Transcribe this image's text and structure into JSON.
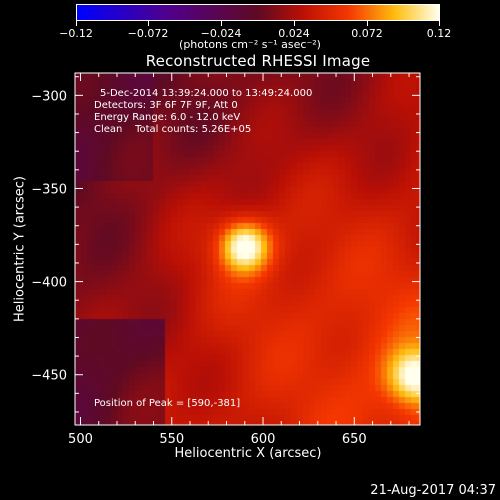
{
  "colorbar": {
    "ticks": [
      "−0.12",
      "−0.072",
      "−0.024",
      "0.024",
      "0.072",
      "0.12"
    ],
    "unit": "(photons cm⁻² s⁻¹ asec⁻²)",
    "range": [
      -0.12,
      0.12
    ],
    "colormap": "rhessi-blue-purple-red-yellow-white"
  },
  "title": "Reconstructed RHESSI Image",
  "info": {
    "line1": "5-Dec-2014 13:39:24.000 to 13:49:24.000",
    "line2": "Detectors: 3F 6F 7F 9F, Att 0",
    "line3": "Energy Range: 6.0 - 12.0 keV",
    "line4": "Clean    Total counts: 5.26E+05",
    "peak": "Position of Peak = [590,-381]"
  },
  "footer_date": "21-Aug-2017 04:37",
  "chart_data": {
    "type": "heatmap",
    "title": "Reconstructed RHESSI Image",
    "xlabel": "Heliocentric X (arcsec)",
    "ylabel": "Heliocentric Y (arcsec)",
    "xlim": [
      497,
      686
    ],
    "ylim": [
      -477,
      -288
    ],
    "x_ticks": [
      500,
      550,
      600,
      650
    ],
    "y_ticks": [
      -300,
      -350,
      -400,
      -450
    ],
    "sources": [
      {
        "x": 590,
        "y": -381,
        "peak": 0.12
      },
      {
        "x": 683,
        "y": -451,
        "peak": 0.1
      }
    ],
    "background_level": 0.035
  }
}
